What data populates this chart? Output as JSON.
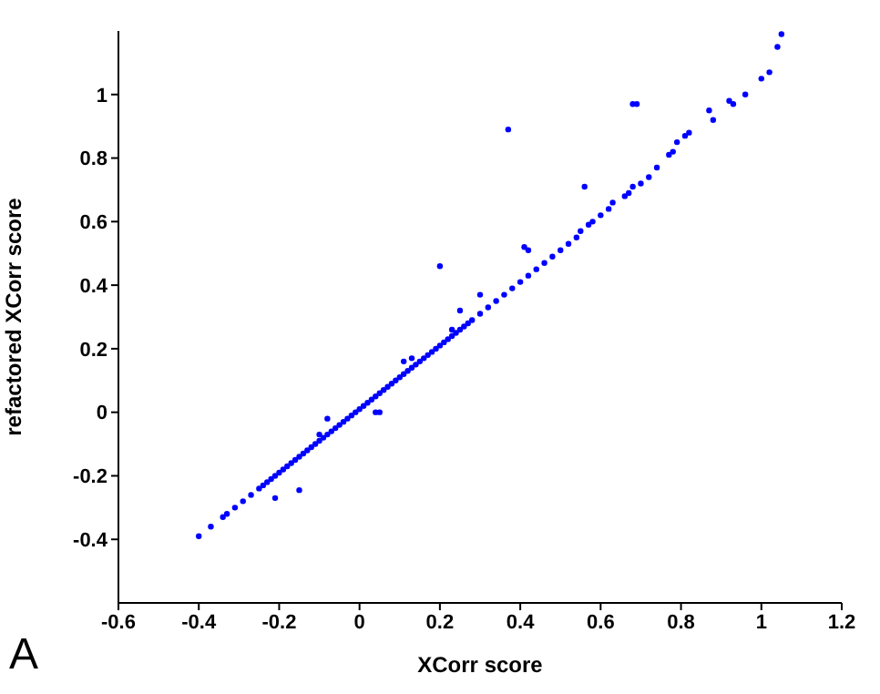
{
  "chart_data": {
    "type": "scatter",
    "xlabel": "XCorr score",
    "ylabel": "refactored XCorr score",
    "annotations": [
      "A"
    ],
    "marker": "circle",
    "grid": false,
    "xlim": [
      -0.6,
      1.2
    ],
    "ylim": [
      -0.6,
      1.2
    ],
    "xticks": [
      -0.6,
      -0.4,
      -0.2,
      0,
      0.2,
      0.4,
      0.6,
      0.8,
      1,
      1.2
    ],
    "yticks": [
      -0.4,
      -0.2,
      0,
      0.2,
      0.4,
      0.6,
      0.8,
      1
    ],
    "series": [
      {
        "color": "#0000ff",
        "x": [
          -0.4,
          -0.37,
          -0.34,
          -0.33,
          -0.31,
          -0.29,
          -0.27,
          -0.25,
          -0.24,
          -0.23,
          -0.22,
          -0.21,
          -0.2,
          -0.19,
          -0.18,
          -0.17,
          -0.16,
          -0.15,
          -0.14,
          -0.13,
          -0.12,
          -0.11,
          -0.1,
          -0.09,
          -0.08,
          -0.07,
          -0.06,
          -0.05,
          -0.04,
          -0.03,
          -0.02,
          -0.01,
          0,
          0.01,
          0.02,
          0.03,
          0.04,
          0.05,
          0.06,
          0.07,
          0.08,
          0.09,
          0.1,
          0.11,
          0.12,
          0.13,
          0.14,
          0.15,
          0.16,
          0.17,
          0.18,
          0.19,
          0.2,
          0.21,
          0.22,
          0.23,
          0.24,
          0.25,
          0.26,
          0.27,
          0.28,
          0.3,
          0.32,
          0.34,
          0.36,
          0.38,
          0.4,
          0.42,
          0.44,
          0.46,
          0.48,
          0.5,
          0.52,
          0.54,
          0.55,
          0.57,
          0.58,
          0.6,
          0.62,
          0.63,
          0.66,
          0.67,
          0.68,
          0.7,
          0.72,
          0.74,
          0.77,
          0.78,
          0.79,
          0.81,
          0.82,
          0.87,
          0.88,
          0.92,
          0.93,
          0.96,
          1,
          1.02,
          1.04,
          1.05,
          0.37,
          0.68,
          0.69,
          0.2,
          -0.15,
          -0.21,
          0.05,
          0.04,
          0.56,
          -0.08,
          0.11,
          0.25,
          0.3,
          0.42,
          0.41,
          -0.1,
          0.13,
          0.23
        ],
        "values": [
          -0.39,
          -0.36,
          -0.33,
          -0.32,
          -0.3,
          -0.28,
          -0.26,
          -0.24,
          -0.23,
          -0.22,
          -0.21,
          -0.2,
          -0.19,
          -0.18,
          -0.17,
          -0.16,
          -0.15,
          -0.14,
          -0.13,
          -0.12,
          -0.11,
          -0.1,
          -0.09,
          -0.08,
          -0.07,
          -0.06,
          -0.05,
          -0.04,
          -0.03,
          -0.02,
          -0.01,
          0,
          0.01,
          0.02,
          0.03,
          0.04,
          0.05,
          0.06,
          0.07,
          0.08,
          0.09,
          0.1,
          0.11,
          0.12,
          0.13,
          0.14,
          0.15,
          0.16,
          0.17,
          0.18,
          0.19,
          0.2,
          0.21,
          0.22,
          0.23,
          0.24,
          0.25,
          0.26,
          0.27,
          0.28,
          0.29,
          0.31,
          0.33,
          0.35,
          0.37,
          0.39,
          0.41,
          0.43,
          0.45,
          0.47,
          0.49,
          0.51,
          0.53,
          0.55,
          0.57,
          0.59,
          0.6,
          0.62,
          0.64,
          0.66,
          0.68,
          0.69,
          0.71,
          0.72,
          0.74,
          0.77,
          0.81,
          0.82,
          0.85,
          0.87,
          0.88,
          0.95,
          0.92,
          0.98,
          0.97,
          1,
          1.05,
          1.07,
          1.15,
          1.19,
          0.89,
          0.97,
          0.97,
          0.46,
          -0.245,
          -0.27,
          0,
          0,
          0.71,
          -0.02,
          0.16,
          0.32,
          0.37,
          0.51,
          0.52,
          -0.07,
          0.17,
          0.26
        ]
      }
    ]
  }
}
